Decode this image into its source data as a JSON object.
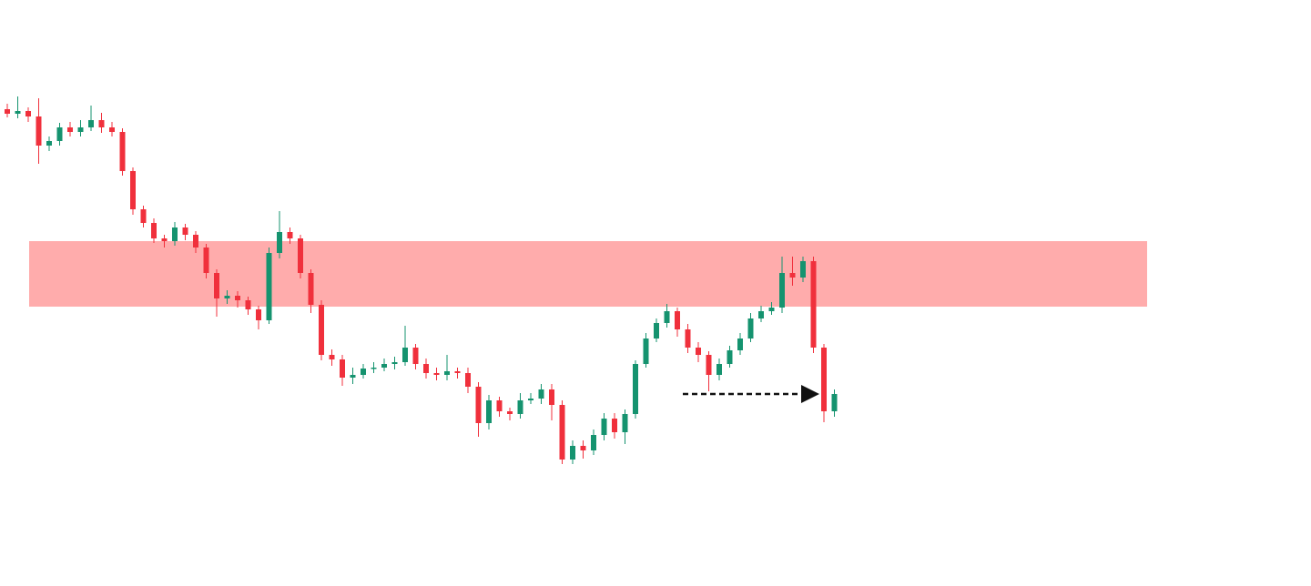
{
  "chart_data": {
    "type": "candlestick",
    "ylim": [
      0,
      644
    ],
    "up_color": "#15936f",
    "down_color": "#f0303c",
    "open": [
      524,
      519,
      522,
      516,
      484,
      489,
      504,
      499,
      504,
      512,
      504,
      499,
      456,
      414,
      399,
      382,
      379,
      394,
      386,
      372,
      344,
      316,
      319,
      314,
      304,
      292,
      366,
      389,
      382,
      344,
      309,
      254,
      249,
      229,
      232,
      239,
      240,
      244,
      246,
      262,
      244,
      234,
      232,
      236,
      234,
      219,
      179,
      204,
      192,
      189,
      204,
      206,
      216,
      199,
      139,
      154,
      149,
      166,
      184,
      169,
      189,
      244,
      272,
      289,
      302,
      282,
      262,
      254,
      232,
      244,
      259,
      272,
      294,
      302,
      306,
      344,
      339,
      357,
      262,
      192
    ],
    "high": [
      530,
      538,
      526,
      536,
      494,
      509,
      510,
      512,
      528,
      520,
      510,
      503,
      460,
      418,
      404,
      386,
      400,
      398,
      390,
      376,
      348,
      325,
      324,
      318,
      308,
      372,
      412,
      394,
      386,
      348,
      314,
      260,
      254,
      240,
      244,
      246,
      250,
      252,
      286,
      266,
      250,
      240,
      254,
      240,
      240,
      224,
      210,
      208,
      196,
      212,
      212,
      222,
      222,
      204,
      160,
      160,
      172,
      190,
      190,
      194,
      248,
      278,
      294,
      310,
      306,
      288,
      268,
      258,
      250,
      264,
      278,
      300,
      308,
      312,
      362,
      362,
      362,
      362,
      266,
      216
    ],
    "low": [
      515,
      514,
      510,
      464,
      478,
      484,
      494,
      494,
      500,
      498,
      494,
      451,
      408,
      394,
      377,
      372,
      374,
      380,
      366,
      338,
      296,
      310,
      306,
      298,
      282,
      288,
      360,
      376,
      338,
      300,
      248,
      242,
      220,
      222,
      228,
      234,
      236,
      238,
      242,
      238,
      228,
      226,
      226,
      228,
      212,
      164,
      172,
      186,
      182,
      184,
      200,
      200,
      182,
      134,
      134,
      140,
      144,
      160,
      162,
      156,
      184,
      240,
      268,
      284,
      274,
      256,
      246,
      214,
      226,
      240,
      254,
      268,
      290,
      298,
      300,
      330,
      334,
      256,
      180,
      186
    ],
    "close": [
      519,
      522,
      516,
      484,
      489,
      504,
      499,
      504,
      512,
      504,
      499,
      456,
      414,
      399,
      382,
      379,
      394,
      386,
      372,
      344,
      316,
      319,
      314,
      304,
      292,
      366,
      389,
      382,
      344,
      309,
      254,
      249,
      229,
      232,
      239,
      240,
      244,
      246,
      262,
      244,
      234,
      232,
      236,
      234,
      219,
      179,
      204,
      192,
      189,
      204,
      206,
      216,
      199,
      139,
      154,
      149,
      166,
      184,
      169,
      189,
      244,
      272,
      289,
      302,
      282,
      262,
      254,
      232,
      244,
      259,
      272,
      294,
      302,
      306,
      344,
      339,
      357,
      262,
      192,
      211
    ],
    "zone": {
      "from": 307,
      "to": 379,
      "color": "#ff9d9d"
    },
    "arrow_level": 211
  }
}
